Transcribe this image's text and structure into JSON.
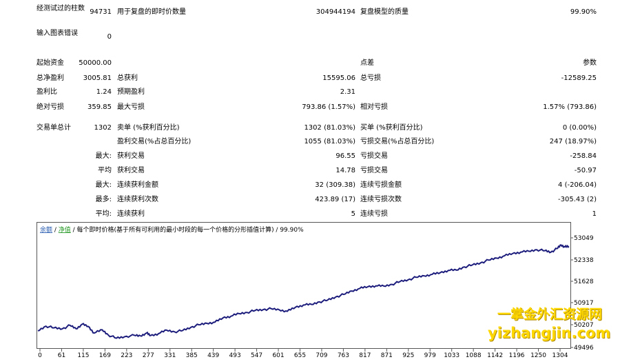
{
  "report": {
    "bars_tested_label": "经测试过的柱数",
    "bars_tested_value": "94731",
    "ticks_label": "用于复盘的即时价数量",
    "ticks_value": "304944194",
    "model_quality_label": "复盘模型的质量",
    "model_quality_value": "99.90%",
    "mismatched_label": "输入图表错误",
    "mismatched_value": "0",
    "initial_deposit_label": "起始资金",
    "initial_deposit_value": "50000.00",
    "spread_label": "点差",
    "spread_value": "参数",
    "total_net_profit_label": "总净盈利",
    "total_net_profit_value": "3005.81",
    "gross_profit_label": "总获利",
    "gross_profit_value": "15595.06",
    "gross_loss_label": "总亏损",
    "gross_loss_value": "-12589.25",
    "profit_factor_label": "盈利比",
    "profit_factor_value": "1.24",
    "expected_payoff_label": "预期盈利",
    "expected_payoff_value": "2.31",
    "abs_drawdown_label": "绝对亏损",
    "abs_drawdown_value": "359.85",
    "max_drawdown_label": "最大亏损",
    "max_drawdown_value": "793.86 (1.57%)",
    "rel_drawdown_label": "相对亏损",
    "rel_drawdown_value": "1.57% (793.86)",
    "total_trades_label": "交易单总计",
    "total_trades_value": "1302",
    "short_label": "卖单 (%获利百分比)",
    "short_value": "1302 (81.03%)",
    "long_label": "买单 (%获利百分比)",
    "long_value": "0 (0.00%)",
    "profit_trades_label": "盈利交易(%占总百分比)",
    "profit_trades_value": "1055 (81.03%)",
    "loss_trades_label": "亏损交易(%占总百分比)",
    "loss_trades_value": "247 (18.97%)",
    "largest_prefix": "最大:",
    "largest_profit_label": "获利交易",
    "largest_profit_value": "96.55",
    "largest_loss_label": "亏损交易",
    "largest_loss_value": "-258.84",
    "average_prefix": "平均",
    "average_profit_label": "获利交易",
    "average_profit_value": "14.78",
    "average_loss_label": "亏损交易",
    "average_loss_value": "-50.97",
    "max_consec_prefix": "最大:",
    "max_consec_wins_label": "连续获利金额",
    "max_consec_wins_value": "32 (309.38)",
    "max_consec_losses_label": "连续亏损金额",
    "max_consec_losses_value": "4 (-206.04)",
    "most_prefix": "最多:",
    "max_consec_profit_label": "连续获利次数",
    "max_consec_profit_value": "423.89 (17)",
    "max_consec_loss_label": "连续亏损次数",
    "max_consec_loss_value": "-305.43 (2)",
    "avg_consec_prefix": "平均:",
    "avg_consec_wins_label": "连续获利",
    "avg_consec_wins_value": "5",
    "avg_consec_losses_label": "连续亏损",
    "avg_consec_losses_value": "1"
  },
  "chart_header": {
    "balance": "余额",
    "sep1": " / ",
    "equity": "净值",
    "desc": " / 每个即时价格(基于所有可利用的最小时段的每一个价格的分形插值计算) / 99.90%"
  },
  "colors": {
    "line": "#1c1c7c",
    "balance_label": "#2a5db0",
    "equity_label": "#2a9a2a",
    "watermark": "#ffd800"
  },
  "watermark": {
    "line1": "一掌金外汇资源网",
    "line2": "yizhangjin.com"
  },
  "chart_data": {
    "type": "line",
    "title": "",
    "xlabel": "",
    "ylabel": "",
    "x_ticks": [
      "0",
      "61",
      "115",
      "169",
      "223",
      "277",
      "331",
      "385",
      "439",
      "493",
      "547",
      "601",
      "655",
      "709",
      "763",
      "817",
      "871",
      "925",
      "979",
      "1033",
      "1088",
      "1142",
      "1196",
      "1250",
      "1304"
    ],
    "y_ticks": [
      "53049",
      "52338",
      "51628",
      "50917",
      "50207",
      "49496"
    ],
    "xlim": [
      0,
      1320
    ],
    "ylim": [
      49496,
      53400
    ],
    "series": [
      {
        "values": [
          [
            0,
            50080
          ],
          [
            20,
            50240
          ],
          [
            40,
            50180
          ],
          [
            61,
            50150
          ],
          [
            80,
            50270
          ],
          [
            95,
            50150
          ],
          [
            110,
            50310
          ],
          [
            125,
            50230
          ],
          [
            140,
            50000
          ],
          [
            160,
            50110
          ],
          [
            175,
            49930
          ],
          [
            195,
            49820
          ],
          [
            215,
            49870
          ],
          [
            240,
            49920
          ],
          [
            255,
            49900
          ],
          [
            270,
            50000
          ],
          [
            280,
            49910
          ],
          [
            300,
            49980
          ],
          [
            320,
            50100
          ],
          [
            340,
            50040
          ],
          [
            360,
            50090
          ],
          [
            380,
            50200
          ],
          [
            400,
            50290
          ],
          [
            420,
            50340
          ],
          [
            440,
            50380
          ],
          [
            460,
            50530
          ],
          [
            480,
            50590
          ],
          [
            500,
            50680
          ],
          [
            520,
            50720
          ],
          [
            540,
            50790
          ],
          [
            560,
            50820
          ],
          [
            580,
            50850
          ],
          [
            600,
            50810
          ],
          [
            620,
            50760
          ],
          [
            640,
            50900
          ],
          [
            660,
            50980
          ],
          [
            680,
            51000
          ],
          [
            700,
            51090
          ],
          [
            720,
            51150
          ],
          [
            740,
            51260
          ],
          [
            760,
            51350
          ],
          [
            780,
            51470
          ],
          [
            800,
            51560
          ],
          [
            820,
            51620
          ],
          [
            840,
            51650
          ],
          [
            860,
            51640
          ],
          [
            880,
            51700
          ],
          [
            900,
            51800
          ],
          [
            920,
            51860
          ],
          [
            940,
            51950
          ],
          [
            960,
            52000
          ],
          [
            980,
            52050
          ],
          [
            1000,
            52110
          ],
          [
            1020,
            52190
          ],
          [
            1040,
            52200
          ],
          [
            1060,
            52310
          ],
          [
            1080,
            52380
          ],
          [
            1100,
            52450
          ],
          [
            1120,
            52550
          ],
          [
            1140,
            52620
          ],
          [
            1160,
            52700
          ],
          [
            1180,
            52780
          ],
          [
            1200,
            52830
          ],
          [
            1220,
            52860
          ],
          [
            1240,
            52910
          ],
          [
            1260,
            52880
          ],
          [
            1275,
            52830
          ],
          [
            1290,
            52950
          ],
          [
            1300,
            53080
          ],
          [
            1310,
            53010
          ],
          [
            1320,
            53030
          ]
        ]
      }
    ],
    "grid": false,
    "legend": "none"
  }
}
